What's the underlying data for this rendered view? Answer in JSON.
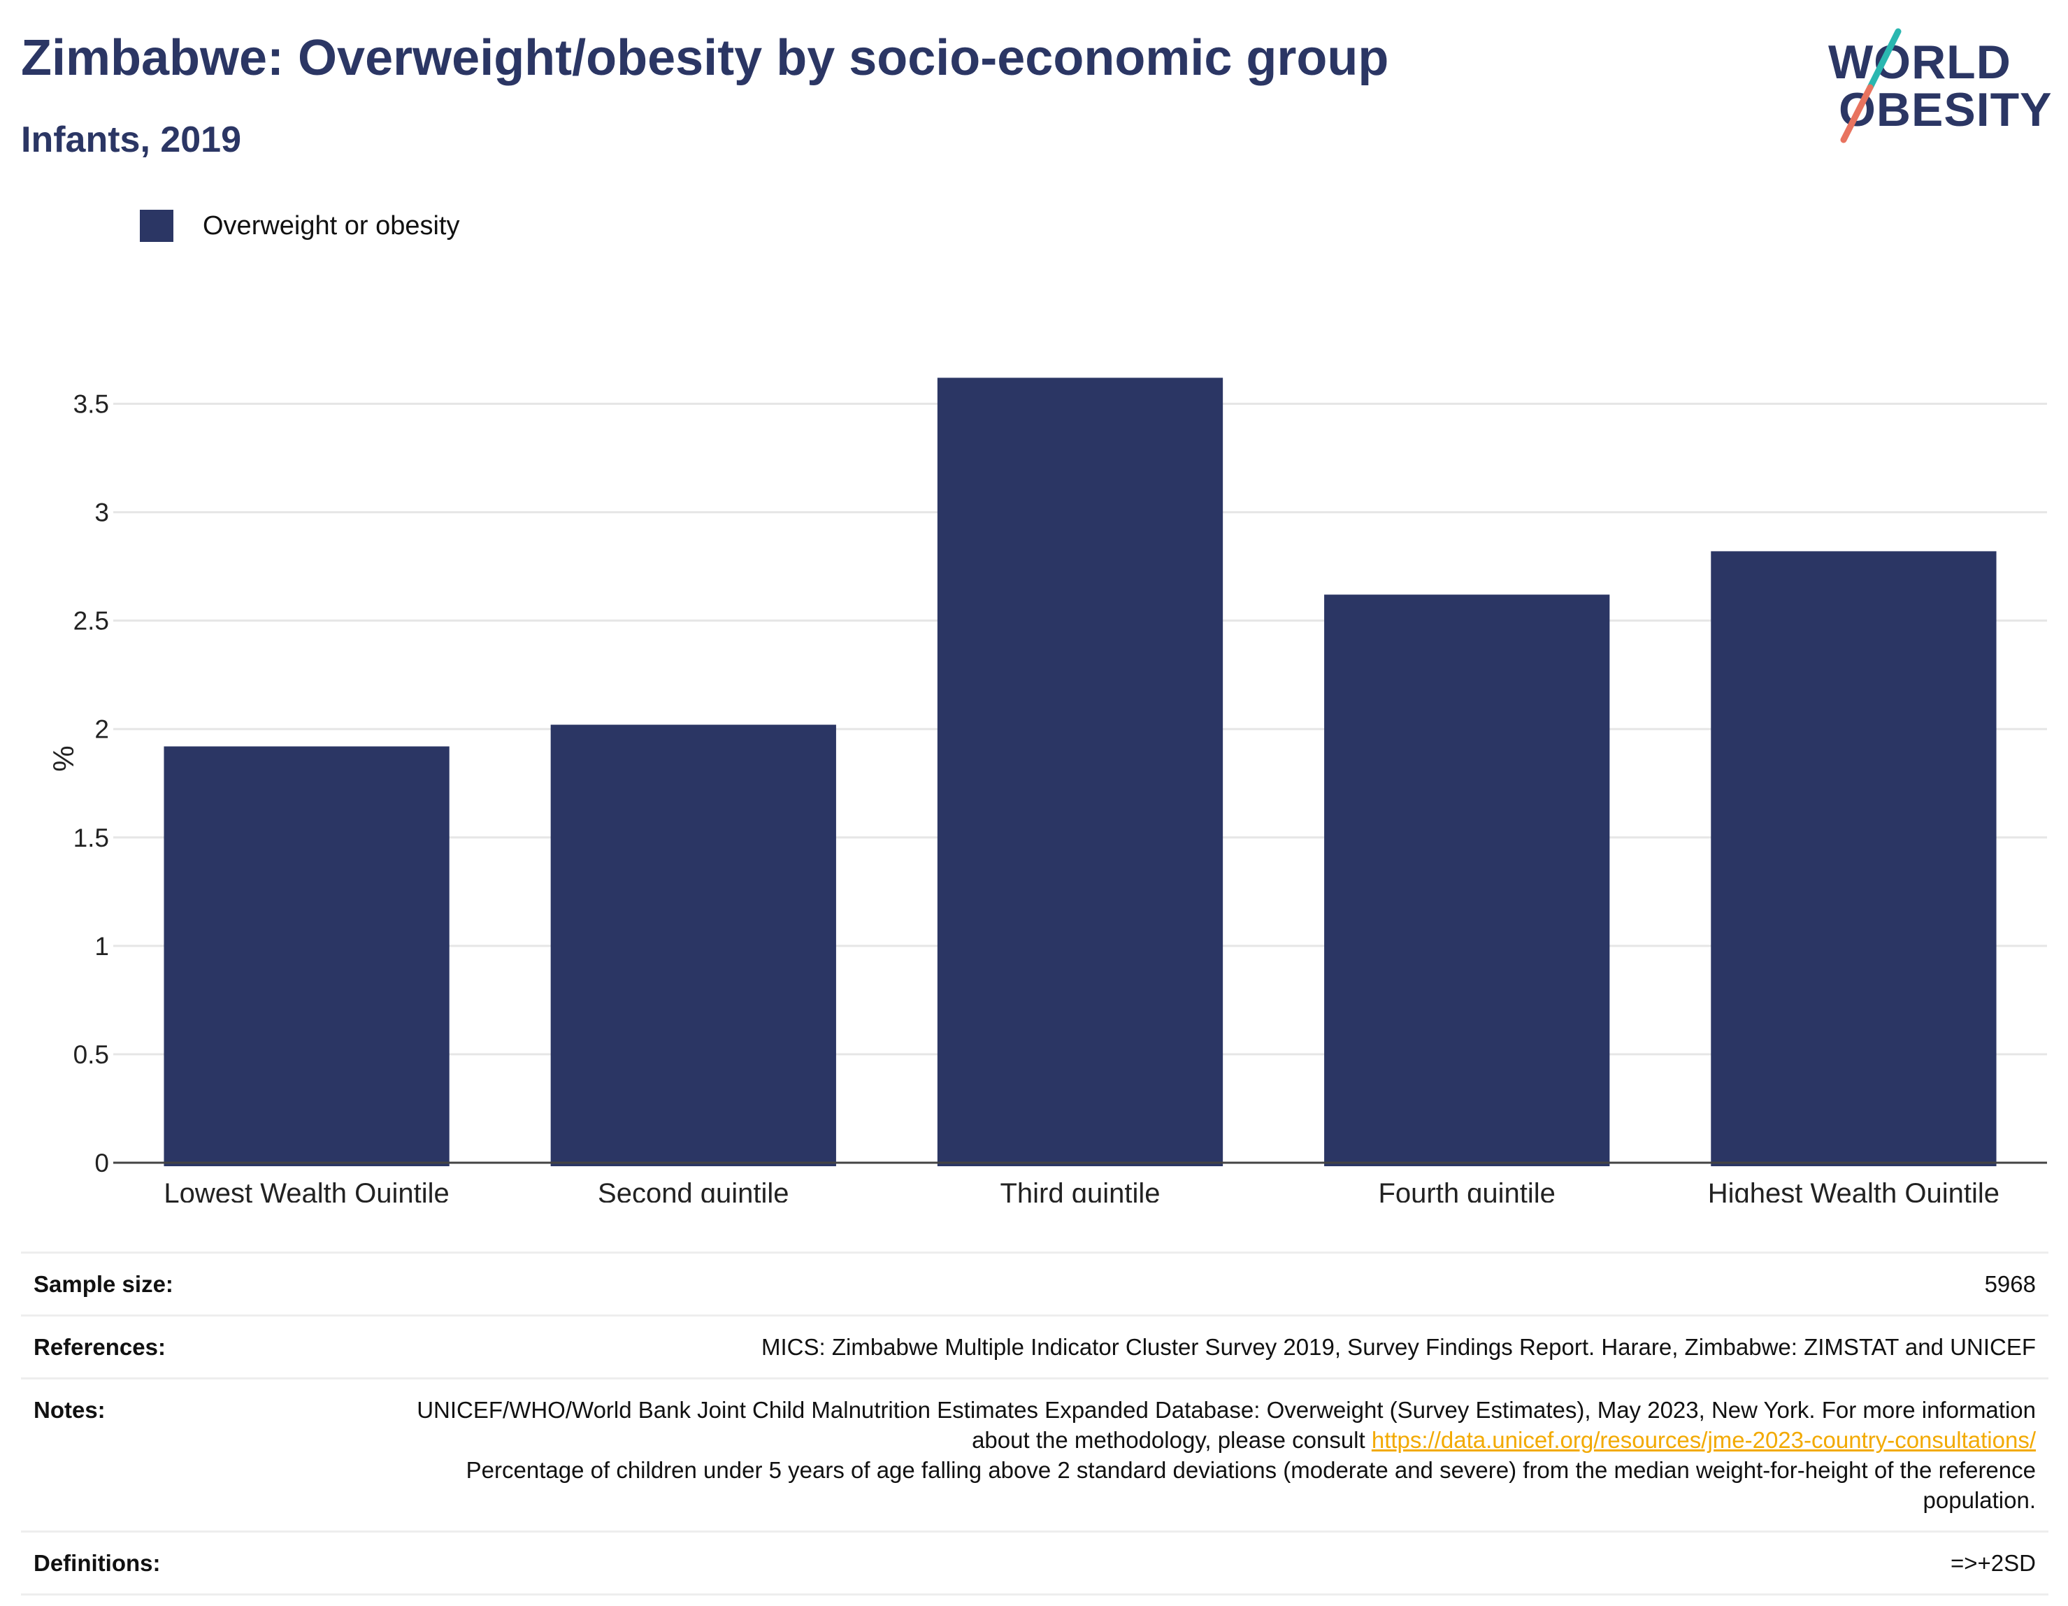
{
  "header": {
    "title": "Zimbabwe: Overweight/obesity by socio-economic group",
    "subtitle": "Infants, 2019"
  },
  "logo": {
    "line1": "WORLD",
    "line2": "OBESITY"
  },
  "colors": {
    "bar": "#2b3664",
    "title": "#2b3664",
    "grid": "#e6e6e6",
    "link": "#f2a900",
    "logo_teal": "#2ab7b0",
    "logo_coral": "#e8735f"
  },
  "legend": {
    "label": "Overweight or obesity"
  },
  "chart_data": {
    "type": "bar",
    "categories": [
      "Lowest Wealth Quintile",
      "Second quintile",
      "Third quintile",
      "Fourth quintile",
      "Highest Wealth Quintile"
    ],
    "series": [
      {
        "name": "Overweight or obesity",
        "values": [
          1.92,
          2.02,
          3.62,
          2.62,
          2.82
        ]
      }
    ],
    "ylabel": "%",
    "ylim": [
      0,
      3.75
    ],
    "yticks": [
      0,
      0.5,
      1,
      1.5,
      2,
      2.5,
      3,
      3.5
    ],
    "ytick_labels": [
      "0",
      "0.5",
      "1",
      "1.5",
      "2",
      "2.5",
      "3",
      "3.5"
    ],
    "grid": true,
    "legend_position": "top-left"
  },
  "footer": {
    "sample_size": {
      "label": "Sample size:",
      "value": "5968"
    },
    "references": {
      "label": "References:",
      "value": "MICS: Zimbabwe Multiple Indicator Cluster Survey 2019, Survey Findings Report. Harare, Zimbabwe: ZIMSTAT and UNICEF"
    },
    "notes": {
      "label": "Notes:",
      "text_before": "UNICEF/WHO/World Bank Joint Child Malnutrition Estimates Expanded Database: Overweight (Survey Estimates), May 2023, New York. For more information about the methodology, please consult ",
      "link": "https://data.unicef.org/resources/jme-2023-country-consultations/",
      "text_after": "Percentage of children under 5 years of age falling above 2 standard deviations (moderate and severe) from the median weight-for-height of the reference population."
    },
    "definitions": {
      "label": "Definitions:",
      "value": "=>+2SD"
    }
  }
}
